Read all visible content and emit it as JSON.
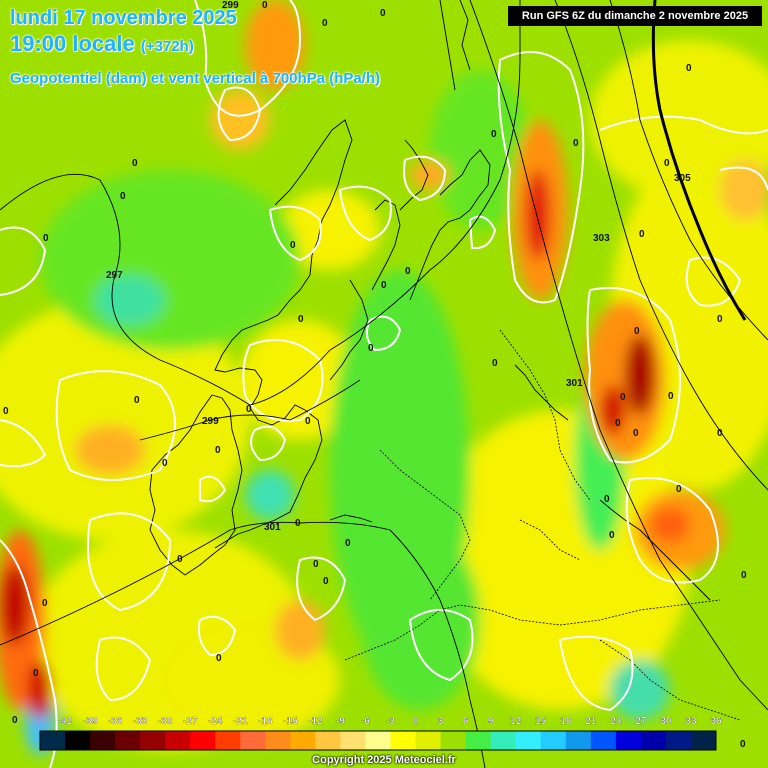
{
  "header": {
    "date_line": "lundi 17 novembre 2025",
    "time_line": "19:00 locale",
    "lead_time": "(+372h)",
    "product_line": "Geopotentiel (dam) et vent vertical à 700hPa (hPa/h)",
    "run_info": "Run GFS 6Z du dimanche 2 novembre 2025"
  },
  "contour_labels": [
    "299",
    "297",
    "299",
    "301",
    "301",
    "303",
    "305"
  ],
  "vertical_wind_labels": [
    "0",
    "0",
    "0",
    "0",
    "0",
    "0",
    "0",
    "0",
    "0",
    "0",
    "0",
    "0",
    "0",
    "0",
    "0",
    "0",
    "0",
    "0",
    "0",
    "0",
    "0",
    "0",
    "0",
    "0",
    "0",
    "0",
    "0",
    "0",
    "0",
    "0",
    "0",
    "0",
    "0",
    "0",
    "0",
    "0",
    "0",
    "0",
    "0",
    "0",
    "0",
    "0",
    "0",
    "0"
  ],
  "legend": {
    "ticks": [
      "-42",
      "-39",
      "-36",
      "-33",
      "-30",
      "-27",
      "-24",
      "-21",
      "-18",
      "-15",
      "-12",
      "-9",
      "-6",
      "-3",
      "0",
      "3",
      "6",
      "9",
      "12",
      "15",
      "18",
      "21",
      "24",
      "27",
      "30",
      "33",
      "36"
    ],
    "colors": [
      "#002a4a",
      "#000000",
      "#3a0000",
      "#6a0000",
      "#950000",
      "#c80000",
      "#ff0000",
      "#ff3d00",
      "#ff6a3a",
      "#ff8c1a",
      "#ffaa00",
      "#ffc640",
      "#ffe070",
      "#ffff90",
      "#ffff00",
      "#e0f000",
      "#9be000",
      "#44ee44",
      "#33eebb",
      "#33eeff",
      "#22ccff",
      "#1199ee",
      "#0055ff",
      "#0000dd",
      "#0000aa",
      "#001a88",
      "#00234a"
    ]
  },
  "copyright": "Copyright 2025 Meteociel.fr"
}
